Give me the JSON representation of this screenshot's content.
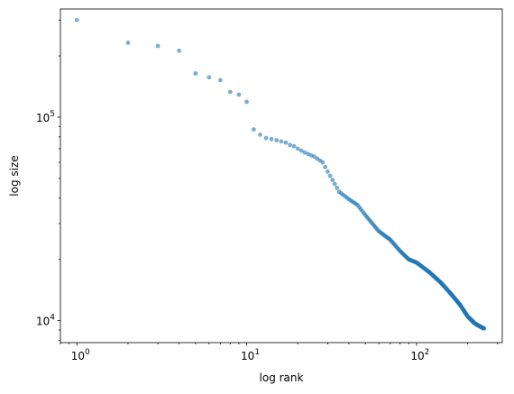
{
  "chart_data": {
    "type": "scatter",
    "xlabel": "log rank",
    "ylabel": "log size",
    "xscale": "log",
    "yscale": "log",
    "xlim": [
      0.8,
      320
    ],
    "ylim": [
      7800,
      340000
    ],
    "grid": false,
    "legend": "none",
    "marker_color": "#1f77b4",
    "marker_alpha": 0.6,
    "x_ticks": [
      {
        "value": 1,
        "base": "10",
        "exp": "0"
      },
      {
        "value": 10,
        "base": "10",
        "exp": "1"
      },
      {
        "value": 100,
        "base": "10",
        "exp": "2"
      }
    ],
    "y_ticks": [
      {
        "value": 10000,
        "base": "10",
        "exp": "4"
      },
      {
        "value": 100000,
        "base": "10",
        "exp": "5"
      }
    ],
    "anchor_points": [
      [
        1,
        300000
      ],
      [
        2,
        232000
      ],
      [
        3,
        224000
      ],
      [
        4,
        212000
      ],
      [
        5,
        164000
      ],
      [
        6,
        157000
      ],
      [
        7,
        152000
      ],
      [
        8,
        133000
      ],
      [
        9,
        129000
      ],
      [
        10,
        119000
      ],
      [
        11,
        87000
      ],
      [
        12,
        82000
      ],
      [
        13,
        79000
      ],
      [
        14,
        78000
      ],
      [
        15,
        77000
      ],
      [
        16,
        76000
      ],
      [
        17,
        75000
      ],
      [
        18,
        73000
      ],
      [
        19,
        72000
      ],
      [
        20,
        70000
      ],
      [
        22,
        67000
      ],
      [
        25,
        64000
      ],
      [
        28,
        60000
      ],
      [
        30,
        54000
      ],
      [
        33,
        47000
      ],
      [
        35,
        43000
      ],
      [
        40,
        39500
      ],
      [
        45,
        37000
      ],
      [
        50,
        33000
      ],
      [
        55,
        30000
      ],
      [
        60,
        27500
      ],
      [
        70,
        25000
      ],
      [
        80,
        22000
      ],
      [
        90,
        20000
      ],
      [
        100,
        19300
      ],
      [
        110,
        18200
      ],
      [
        120,
        17200
      ],
      [
        140,
        15300
      ],
      [
        160,
        13500
      ],
      [
        180,
        12000
      ],
      [
        200,
        10500
      ],
      [
        220,
        9700
      ],
      [
        240,
        9300
      ],
      [
        250,
        9150
      ]
    ],
    "n_points": 250
  }
}
